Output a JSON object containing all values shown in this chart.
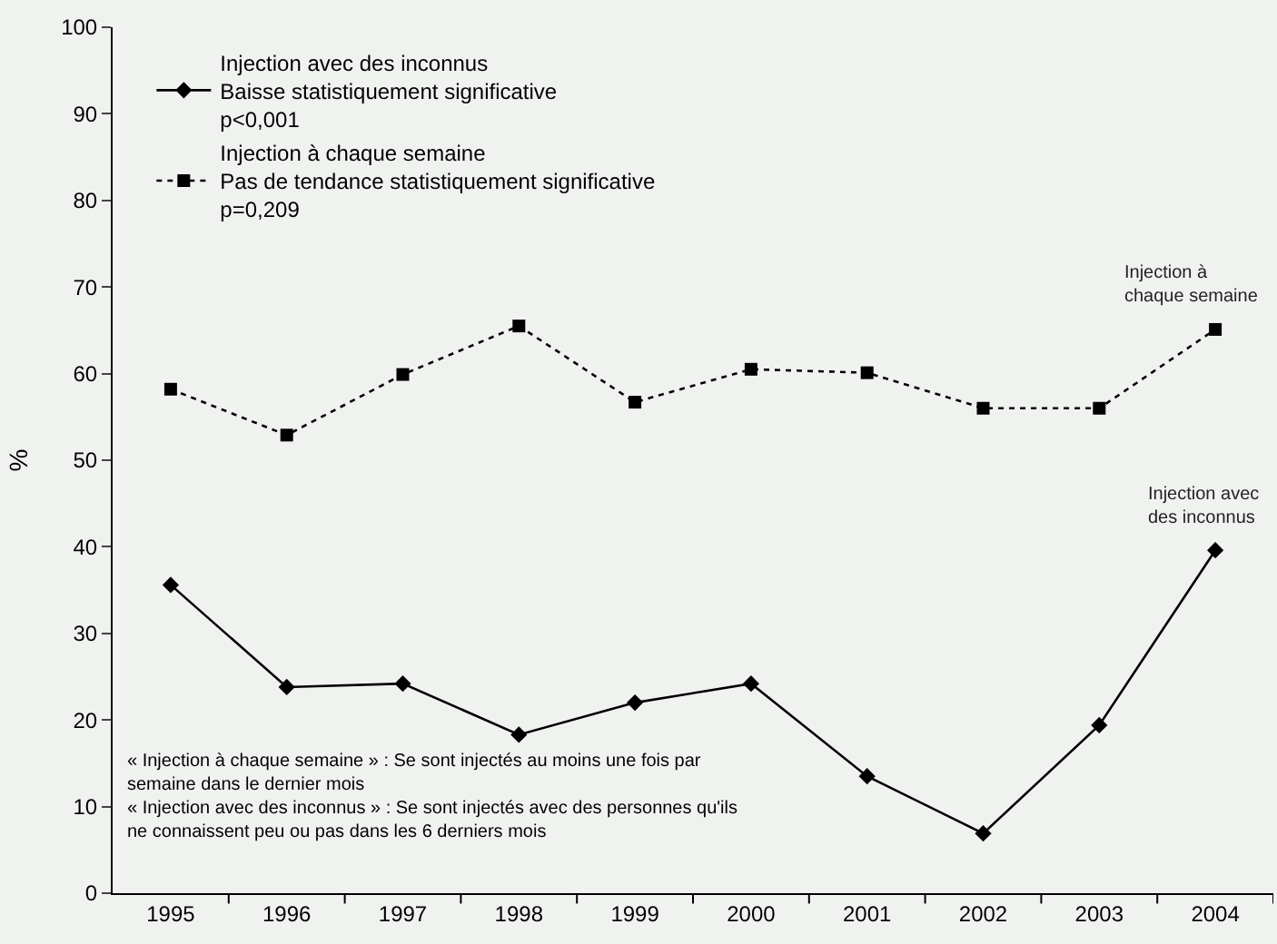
{
  "chart_data": {
    "type": "line",
    "ylabel": "%",
    "categories": [
      "1995",
      "1996",
      "1997",
      "1998",
      "1999",
      "2000",
      "2001",
      "2002",
      "2003",
      "2004"
    ],
    "series": [
      {
        "name": "Injection avec des inconnus\nBaisse statistiquement significative\np<0,001",
        "color": "#000000",
        "marker": "diamond",
        "line_style": "solid",
        "values": [
          35.6,
          23.8,
          24.2,
          18.3,
          22.0,
          24.2,
          13.5,
          6.9,
          19.4,
          39.6
        ]
      },
      {
        "name": "Injection à chaque semaine\nPas de tendance statistiquement significative\np=0,209",
        "color": "#000000",
        "marker": "square",
        "line_style": "dotted",
        "values": [
          58.2,
          52.9,
          59.9,
          65.5,
          56.7,
          60.5,
          60.1,
          56.0,
          56.0,
          65.1
        ]
      }
    ],
    "ylim": [
      0,
      100
    ],
    "yticks": [
      0,
      10,
      20,
      30,
      40,
      50,
      60,
      70,
      80,
      90,
      100
    ],
    "grid": false,
    "legend": "top",
    "annotations": [
      {
        "text": "Injection à\nchaque semaine",
        "x": "2004",
        "y": 65.1
      },
      {
        "text": "Injection avec\ndes inconnus",
        "x": "2004",
        "y": 39.6
      },
      "« Injection à chaque semaine » : Se sont injectés au moins une fois par\nsemaine dans le dernier mois\n« Injection avec des inconnus » : Se sont injectés avec des personnes qu'ils\nne connaissent peu ou pas dans les 6 derniers mois"
    ]
  }
}
